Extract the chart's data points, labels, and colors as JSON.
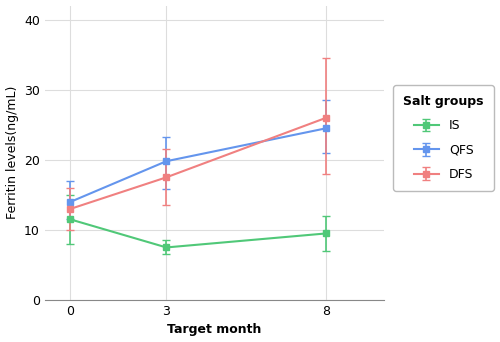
{
  "months": [
    0,
    3,
    8
  ],
  "DFS": {
    "y": [
      13.0,
      17.5,
      26.0
    ],
    "yerr_low": [
      3.0,
      4.0,
      8.0
    ],
    "yerr_high": [
      3.0,
      4.0,
      8.5
    ],
    "color": "#F08080",
    "marker": "s",
    "label": "DFS"
  },
  "IS": {
    "y": [
      11.5,
      7.5,
      9.5
    ],
    "yerr_low": [
      3.5,
      1.0,
      2.5
    ],
    "yerr_high": [
      3.5,
      1.0,
      2.5
    ],
    "color": "#50C878",
    "marker": "s",
    "label": "IS"
  },
  "QFS": {
    "y": [
      14.0,
      19.8,
      24.5
    ],
    "yerr_low": [
      2.5,
      4.0,
      3.5
    ],
    "yerr_high": [
      3.0,
      3.5,
      4.0
    ],
    "color": "#6495ED",
    "marker": "s",
    "label": "QFS"
  },
  "xlabel": "Target month",
  "ylabel": "Ferritin levels(ng/mL)",
  "legend_title": "Salt groups",
  "xlim": [
    -0.8,
    9.8
  ],
  "ylim": [
    0,
    42
  ],
  "yticks": [
    0,
    10,
    20,
    30,
    40
  ],
  "xticks": [
    0,
    3,
    8
  ],
  "plot_bg_color": "#FFFFFF",
  "fig_bg_color": "#FFFFFF",
  "grid_color": "#DDDDDD",
  "axis_fontsize": 9,
  "tick_fontsize": 9,
  "legend_fontsize": 9
}
